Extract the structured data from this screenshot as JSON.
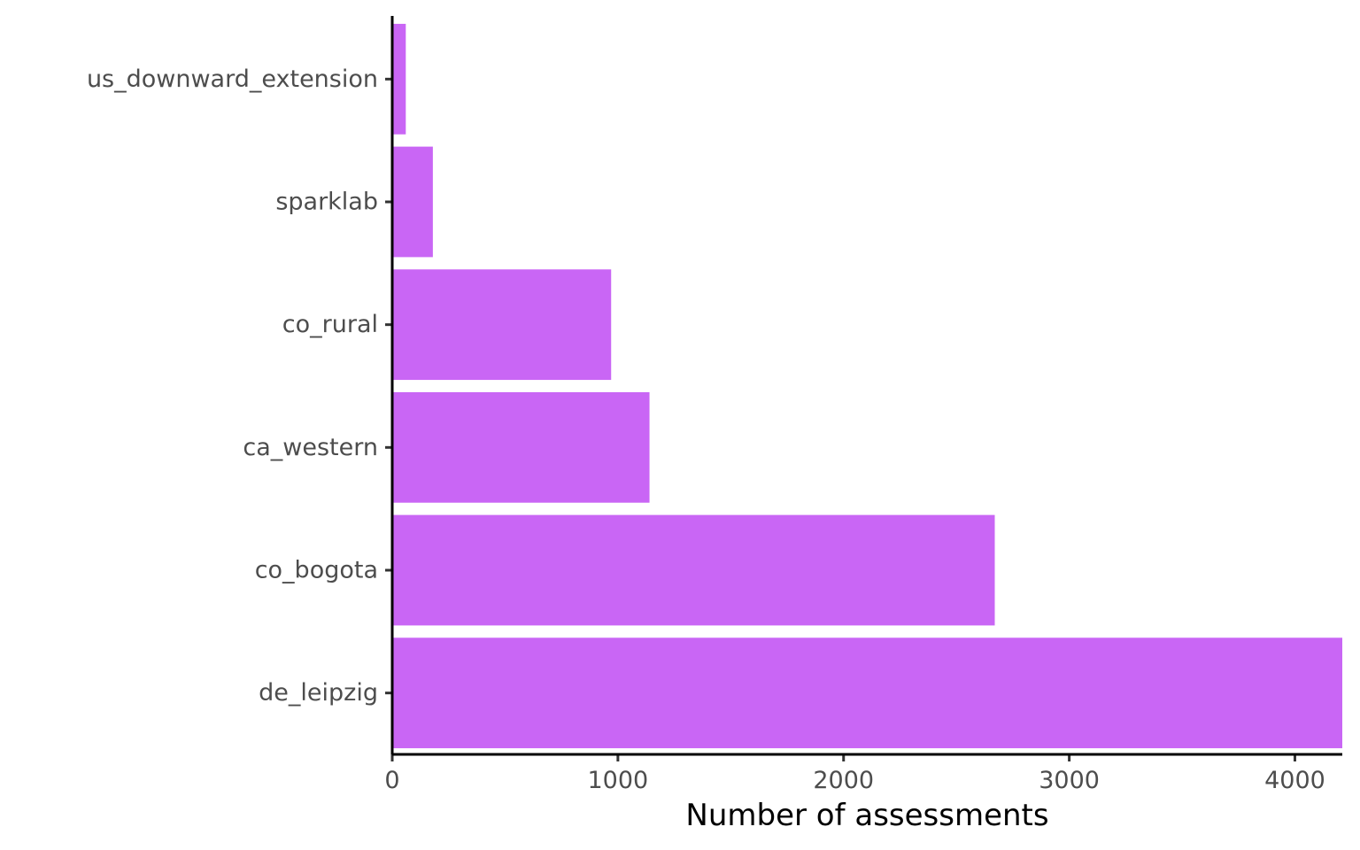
{
  "chart_data": {
    "type": "bar",
    "orientation": "horizontal",
    "categories": [
      "us_downward_extension",
      "sparklab",
      "co_rural",
      "ca_western",
      "co_bogota",
      "de_leipzig"
    ],
    "values": [
      60,
      180,
      970,
      1140,
      2670,
      4210
    ],
    "xlabel": "Number of assessments",
    "ylabel": "",
    "title": "",
    "xlim": [
      0,
      4210
    ],
    "xticks": [
      0,
      1000,
      2000,
      3000,
      4000
    ],
    "xtick_labels": [
      "0",
      "1000",
      "2000",
      "3000",
      "4000"
    ],
    "bar_color": "#c966f5",
    "grid": false,
    "legend": "none"
  }
}
